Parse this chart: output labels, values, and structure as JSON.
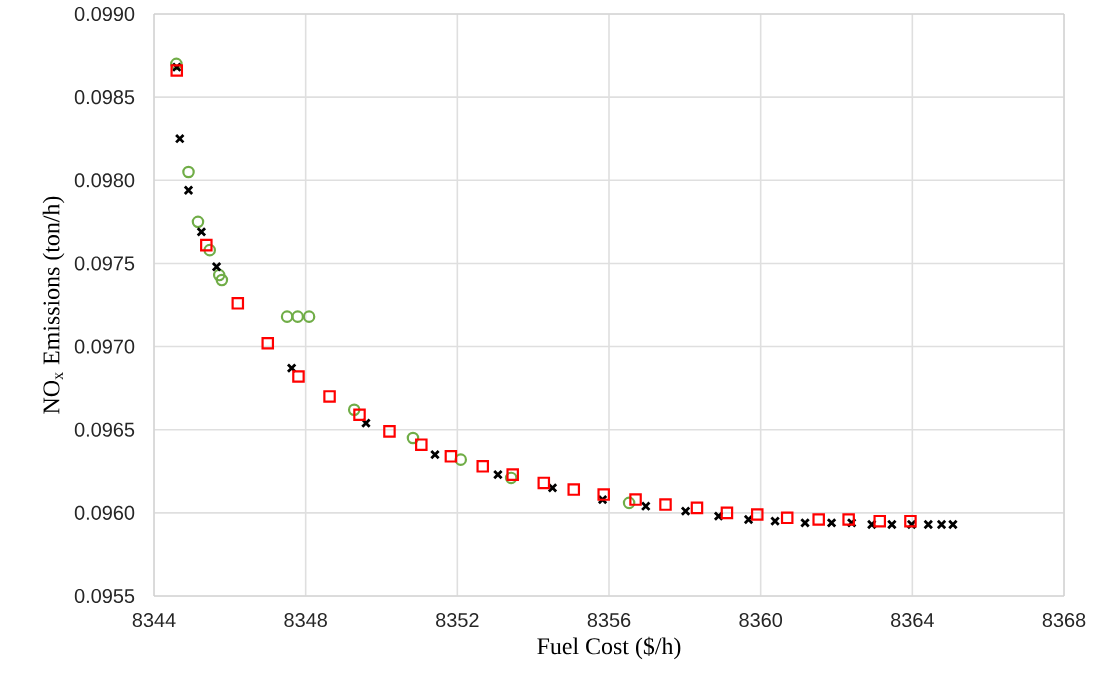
{
  "chart_data": {
    "type": "scatter",
    "xlabel": "Fuel Cost ($/h)",
    "ylabel": "NO$_{x}$ Emissions (ton/h)",
    "xlim": [
      8344,
      8368
    ],
    "xticks": [
      8344,
      8348,
      8352,
      8356,
      8360,
      8364,
      8368
    ],
    "ylim": [
      0.0955,
      0.099
    ],
    "yticks": [
      {
        "value": 0.0955,
        "label": "0.0955"
      },
      {
        "value": 0.096,
        "label": "0.0960"
      },
      {
        "value": 0.0965,
        "label": "0.0965"
      },
      {
        "value": 0.097,
        "label": "0.0970"
      },
      {
        "value": 0.0975,
        "label": "0.0975"
      },
      {
        "value": 0.098,
        "label": "0.0980"
      },
      {
        "value": 0.0985,
        "label": "0.0985"
      },
      {
        "value": 0.099,
        "label": "0.0990"
      }
    ],
    "grid": true,
    "series": [
      {
        "color": "#70ad47",
        "marker": "circle",
        "x": [
          8344.59,
          8344.91,
          8345.16,
          8345.47,
          8345.72,
          8345.79,
          8347.51,
          8347.79,
          8348.09,
          8349.28,
          8350.83,
          8352.09,
          8353.42,
          8356.53
        ],
        "values": [
          0.0987,
          0.09805,
          0.09775,
          0.09758,
          0.09743,
          0.0974,
          0.09718,
          0.09718,
          0.09718,
          0.09662,
          0.09645,
          0.09632,
          0.09621,
          0.09606
        ]
      },
      {
        "color": "#000000",
        "marker": "cross",
        "x": [
          8344.6,
          8344.68,
          8344.91,
          8345.25,
          8345.65,
          8347.63,
          8349.59,
          8351.41,
          8353.07,
          8354.51,
          8355.83,
          8356.97,
          8358.02,
          8358.89,
          8359.68,
          8360.38,
          8361.17,
          8361.87,
          8362.4,
          8362.93,
          8363.46,
          8363.98,
          8364.42,
          8364.77,
          8365.07
        ],
        "values": [
          0.09868,
          0.09825,
          0.09794,
          0.09769,
          0.09748,
          0.09687,
          0.09654,
          0.09635,
          0.09623,
          0.09615,
          0.09608,
          0.09604,
          0.09601,
          0.09598,
          0.09596,
          0.09595,
          0.09594,
          0.09594,
          0.09594,
          0.09593,
          0.09593,
          0.09593,
          0.09593,
          0.09593,
          0.09593
        ]
      },
      {
        "color": "#ff0000",
        "marker": "square",
        "x": [
          8344.6,
          8345.38,
          8346.21,
          8347.0,
          8347.81,
          8348.63,
          8349.42,
          8350.21,
          8351.05,
          8351.83,
          8352.67,
          8353.46,
          8354.28,
          8355.07,
          8355.86,
          8356.7,
          8357.49,
          8358.32,
          8359.11,
          8359.91,
          8360.7,
          8361.53,
          8362.32,
          8363.14,
          8363.95
        ],
        "values": [
          0.09866,
          0.09761,
          0.09726,
          0.09702,
          0.09682,
          0.0967,
          0.09659,
          0.09649,
          0.09641,
          0.09634,
          0.09628,
          0.09623,
          0.09618,
          0.09614,
          0.09611,
          0.09608,
          0.09605,
          0.09603,
          0.096,
          0.09599,
          0.09597,
          0.09596,
          0.09596,
          0.09595,
          0.09595
        ]
      }
    ]
  }
}
